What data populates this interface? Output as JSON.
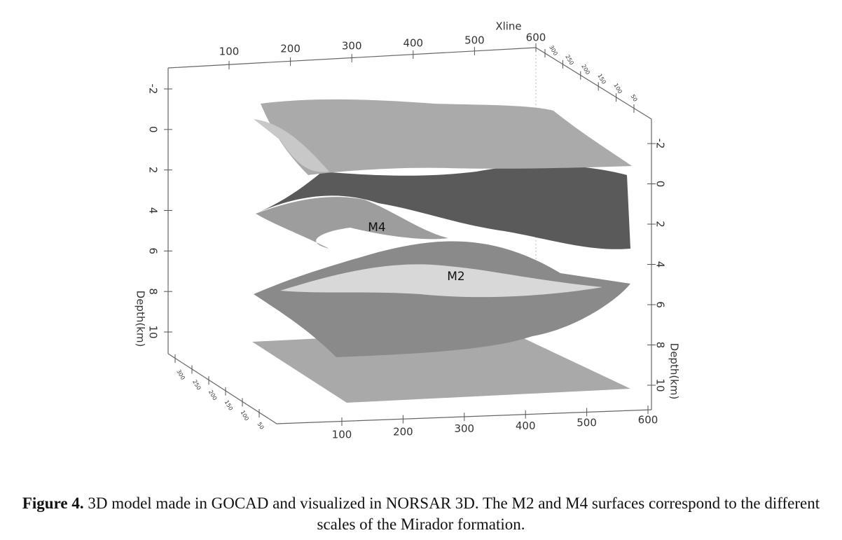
{
  "figure": {
    "top_axis": {
      "label": "Xline",
      "ticks": [
        100,
        200,
        300,
        400,
        500,
        600
      ]
    },
    "top_right_axis": {
      "ticks": [
        300,
        250,
        200,
        150,
        100,
        50
      ]
    },
    "bottom_axis": {
      "ticks": [
        100,
        200,
        300,
        400,
        500,
        600
      ]
    },
    "bottom_left_axis": {
      "ticks": [
        300,
        250,
        200,
        150,
        100,
        50
      ]
    },
    "left_depth_axis": {
      "label": "Depth(km)",
      "ticks": [
        -2,
        0,
        2,
        4,
        6,
        8,
        10
      ]
    },
    "right_depth_axis": {
      "label": "Depth(km)",
      "ticks": [
        -2,
        0,
        2,
        4,
        6,
        8,
        10
      ]
    },
    "surface_labels": [
      "M4",
      "M2"
    ]
  },
  "caption": {
    "label": "Figure 4.",
    "text": "3D model made in GOCAD and visualized in NORSAR 3D. The M2 and M4 surfaces correspond to the different scales of the Mirador formation."
  }
}
